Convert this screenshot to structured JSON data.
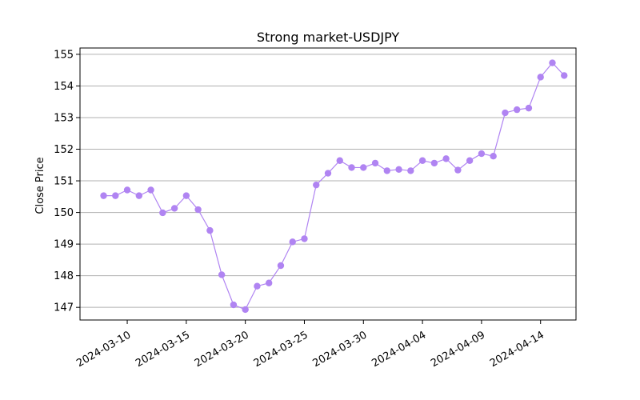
{
  "chart_data": {
    "type": "line",
    "title": "Strong market-USDJPY",
    "xlabel": "",
    "ylabel": "Close Price",
    "x": [
      "2024-03-08",
      "2024-03-09",
      "2024-03-10",
      "2024-03-11",
      "2024-03-12",
      "2024-03-13",
      "2024-03-14",
      "2024-03-15",
      "2024-03-16",
      "2024-03-17",
      "2024-03-18",
      "2024-03-19",
      "2024-03-20",
      "2024-03-21",
      "2024-03-22",
      "2024-03-23",
      "2024-03-24",
      "2024-03-25",
      "2024-03-26",
      "2024-03-27",
      "2024-03-28",
      "2024-03-29",
      "2024-03-30",
      "2024-03-31",
      "2024-04-01",
      "2024-04-02",
      "2024-04-03",
      "2024-04-04",
      "2024-04-05",
      "2024-04-06",
      "2024-04-07",
      "2024-04-08",
      "2024-04-09",
      "2024-04-10",
      "2024-04-11",
      "2024-04-12",
      "2024-04-13",
      "2024-04-14",
      "2024-04-15",
      "2024-04-16"
    ],
    "series": [
      {
        "values": [
          150.53,
          150.53,
          150.71,
          150.53,
          150.71,
          149.99,
          150.13,
          150.53,
          150.09,
          149.43,
          148.03,
          147.08,
          146.93,
          147.67,
          147.77,
          148.32,
          149.07,
          149.17,
          150.87,
          151.24,
          151.64,
          151.42,
          151.42,
          151.56,
          151.32,
          151.36,
          151.32,
          151.64,
          151.56,
          151.7,
          151.34,
          151.64,
          151.86,
          151.78,
          153.15,
          153.25,
          153.3,
          154.28,
          154.73,
          154.33
        ],
        "color": "#b084f2"
      }
    ],
    "xticks": [
      "2024-03-10",
      "2024-03-15",
      "2024-03-20",
      "2024-03-25",
      "2024-03-30",
      "2024-04-04",
      "2024-04-09",
      "2024-04-14"
    ],
    "yticks": [
      147,
      148,
      149,
      150,
      151,
      152,
      153,
      154,
      155
    ],
    "xlim": [
      "2024-03-06",
      "2024-04-17"
    ],
    "ylim": [
      146.6,
      155.2
    ],
    "grid": "horizontal",
    "legend": "none"
  }
}
